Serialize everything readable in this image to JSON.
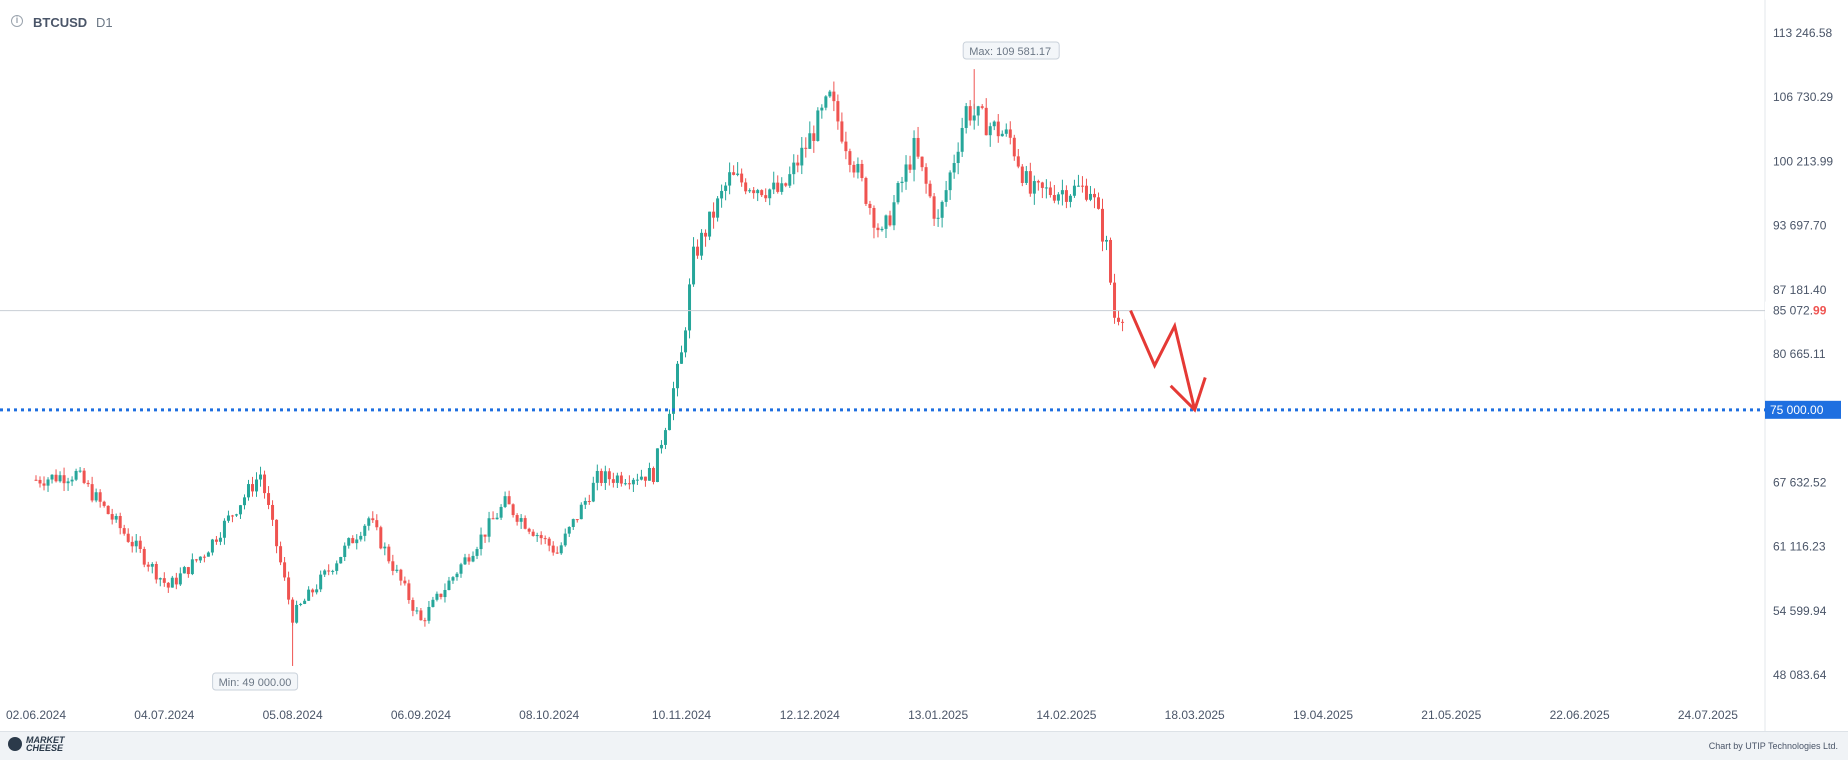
{
  "header": {
    "symbol": "BTCUSD",
    "timeframe": "D1",
    "info_icon": "info-icon"
  },
  "footer": {
    "brand_line1": "MARKET",
    "brand_line2": "CHEESE",
    "credit": "Chart by UTIP Technologies Ltd."
  },
  "colors": {
    "up": "#26a69a",
    "down": "#ef5350",
    "forecast": "#e53935",
    "level": "#1e6fe0",
    "axis_text": "#4a5568"
  },
  "chart_data": {
    "type": "candlestick",
    "y_ticks": [
      "113 246.58",
      "106 730.29",
      "100 213.99",
      "93 697.70",
      "87 181.40",
      "80 665.11",
      "67 632.52",
      "61 116.23",
      "54 599.94",
      "48 083.64"
    ],
    "y_tick_values": [
      113246.58,
      106730.29,
      100213.99,
      93697.7,
      87181.4,
      80665.11,
      67632.52,
      61116.23,
      54599.94,
      48083.64
    ],
    "x_ticks": [
      "02.06.2024",
      "04.07.2024",
      "05.08.2024",
      "06.09.2024",
      "08.10.2024",
      "10.11.2024",
      "12.12.2024",
      "13.01.2025",
      "14.02.2025",
      "18.03.2025",
      "19.04.2025",
      "21.05.2025",
      "22.06.2025",
      "24.07.2025"
    ],
    "current_price": {
      "value": 85072.99,
      "label_main": "85 072.",
      "label_tail": "99"
    },
    "level": {
      "value": 75000.0,
      "label": "75 000.00",
      "style": "dotted"
    },
    "max_marker": {
      "label": "Max: 109 581.17",
      "value": 109581.17,
      "date": "22.01.2025"
    },
    "min_marker": {
      "label": "Min: 49 000.00",
      "value": 49000.0,
      "date": "05.08.2024"
    },
    "forecast_path": [
      {
        "date": "02.03.2025",
        "price": 85072
      },
      {
        "date": "08.03.2025",
        "price": 79500
      },
      {
        "date": "13.03.2025",
        "price": 83500
      },
      {
        "date": "18.03.2025",
        "price": 75000
      }
    ],
    "anchors": [
      [
        "02.06.2024",
        67900
      ],
      [
        "12.06.2024",
        68500
      ],
      [
        "20.06.2024",
        64500
      ],
      [
        "05.07.2024",
        57000
      ],
      [
        "14.07.2024",
        60500
      ],
      [
        "28.07.2024",
        68500
      ],
      [
        "05.08.2024",
        54000
      ],
      [
        "24.08.2024",
        64000
      ],
      [
        "06.09.2024",
        53500
      ],
      [
        "27.09.2024",
        65500
      ],
      [
        "10.10.2024",
        60500
      ],
      [
        "20.10.2024",
        68000
      ],
      [
        "03.11.2024",
        68500
      ],
      [
        "10.11.2024",
        80500
      ],
      [
        "13.11.2024",
        90500
      ],
      [
        "22.11.2024",
        98500
      ],
      [
        "05.12.2024",
        97000
      ],
      [
        "17.12.2024",
        106500
      ],
      [
        "30.12.2024",
        92500
      ],
      [
        "07.01.2025",
        101500
      ],
      [
        "13.01.2025",
        94000
      ],
      [
        "20.01.2025",
        105500
      ],
      [
        "31.01.2025",
        102500
      ],
      [
        "05.02.2025",
        97000
      ],
      [
        "20.02.2025",
        97500
      ],
      [
        "24.02.2025",
        91500
      ],
      [
        "26.02.2025",
        84500
      ],
      [
        "01.03.2025",
        85072
      ]
    ]
  }
}
